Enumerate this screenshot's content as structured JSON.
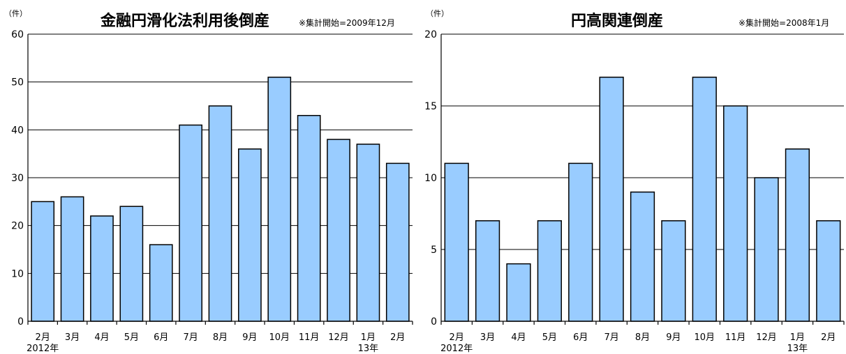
{
  "chart_data": [
    {
      "type": "bar",
      "title": "金融円滑化法利用後倒産",
      "note": "※集計開始=2009年12月",
      "unit_label": "（件）",
      "categories": [
        "2月",
        "3月",
        "4月",
        "5月",
        "6月",
        "7月",
        "8月",
        "9月",
        "10月",
        "11月",
        "12月",
        "1月",
        "2月"
      ],
      "year_labels": [
        {
          "index": 0,
          "text": "2012年"
        },
        {
          "index": 11,
          "text": "13年"
        }
      ],
      "values": [
        25,
        26,
        22,
        24,
        16,
        41,
        45,
        36,
        51,
        43,
        38,
        37,
        33
      ],
      "ylim": [
        0,
        60
      ],
      "yticks": [
        0,
        10,
        20,
        30,
        40,
        50,
        60
      ],
      "grid": true,
      "bar_color": "#99CCFF"
    },
    {
      "type": "bar",
      "title": "円高関連倒産",
      "note": "※集計開始=2008年1月",
      "unit_label": "（件）",
      "categories": [
        "2月",
        "3月",
        "4月",
        "5月",
        "6月",
        "7月",
        "8月",
        "9月",
        "10月",
        "11月",
        "12月",
        "1月",
        "2月"
      ],
      "year_labels": [
        {
          "index": 0,
          "text": "2012年"
        },
        {
          "index": 11,
          "text": "13年"
        }
      ],
      "values": [
        11,
        7,
        4,
        7,
        11,
        17,
        9,
        7,
        17,
        15,
        10,
        12,
        7
      ],
      "ylim": [
        0,
        20
      ],
      "yticks": [
        0,
        5,
        10,
        15,
        20
      ],
      "grid": true,
      "bar_color": "#99CCFF"
    }
  ]
}
